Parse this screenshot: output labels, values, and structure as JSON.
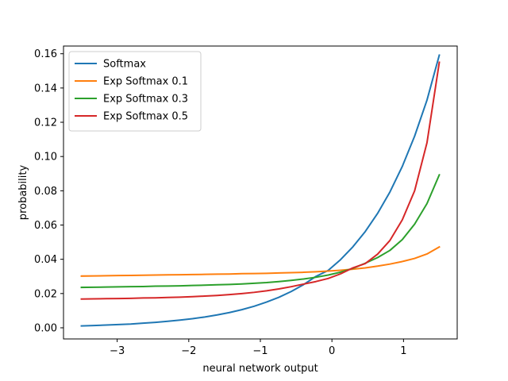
{
  "chart_data": {
    "type": "line",
    "xlabel": "neural network output",
    "ylabel": "probability",
    "xlim": [
      -3.75,
      1.75
    ],
    "ylim": [
      -0.0065,
      0.1645
    ],
    "xticks": [
      -3,
      -2,
      -1,
      0,
      1
    ],
    "xtick_labels": [
      "−3",
      "−2",
      "−1",
      "0",
      "1"
    ],
    "yticks": [
      0.0,
      0.02,
      0.04,
      0.06,
      0.08,
      0.1,
      0.12,
      0.14,
      0.16
    ],
    "ytick_labels": [
      "0.00",
      "0.02",
      "0.04",
      "0.06",
      "0.08",
      "0.10",
      "0.12",
      "0.14",
      "0.16"
    ],
    "grid": false,
    "legend_position": "top-left",
    "x": [
      -3.5,
      -3.3276,
      -3.1552,
      -2.9828,
      -2.8103,
      -2.6379,
      -2.4655,
      -2.2931,
      -2.1207,
      -1.9483,
      -1.7759,
      -1.6034,
      -1.431,
      -1.2586,
      -1.0862,
      -0.9138,
      -0.7414,
      -0.569,
      -0.3966,
      -0.2241,
      -0.0517,
      0.1207,
      0.2931,
      0.4655,
      0.6379,
      0.8103,
      0.9828,
      1.1552,
      1.3276,
      1.5
    ],
    "series": [
      {
        "name": "Softmax",
        "color": "#1f77b4",
        "values": [
          0.0011,
          0.0013,
          0.0016,
          0.0019,
          0.0022,
          0.0027,
          0.0032,
          0.0038,
          0.0045,
          0.0053,
          0.0063,
          0.0075,
          0.0089,
          0.0106,
          0.0126,
          0.015,
          0.0178,
          0.0212,
          0.0252,
          0.03,
          0.0335,
          0.0398,
          0.0473,
          0.0562,
          0.0668,
          0.0793,
          0.0942,
          0.1119,
          0.1329,
          0.1592
        ]
      },
      {
        "name": "Exp Softmax 0.1",
        "color": "#ff7f0e",
        "values": [
          0.0302,
          0.0303,
          0.0304,
          0.0305,
          0.0306,
          0.0307,
          0.0308,
          0.0309,
          0.031,
          0.0311,
          0.0312,
          0.0313,
          0.0314,
          0.0316,
          0.0317,
          0.0318,
          0.032,
          0.0322,
          0.0324,
          0.0327,
          0.0331,
          0.0336,
          0.0342,
          0.035,
          0.036,
          0.0372,
          0.0387,
          0.0405,
          0.0431,
          0.0472
        ]
      },
      {
        "name": "Exp Softmax 0.3",
        "color": "#2ca02c",
        "values": [
          0.0236,
          0.0237,
          0.0238,
          0.0239,
          0.024,
          0.0241,
          0.0243,
          0.0244,
          0.0245,
          0.0247,
          0.0249,
          0.0251,
          0.0253,
          0.0256,
          0.026,
          0.0264,
          0.027,
          0.0277,
          0.0285,
          0.0295,
          0.0308,
          0.0325,
          0.0347,
          0.0377,
          0.041,
          0.0452,
          0.0515,
          0.0605,
          0.0725,
          0.0893
        ]
      },
      {
        "name": "Exp Softmax 0.5",
        "color": "#d62728",
        "values": [
          0.0168,
          0.0169,
          0.017,
          0.0171,
          0.0172,
          0.0174,
          0.0175,
          0.0177,
          0.0179,
          0.0182,
          0.0185,
          0.0189,
          0.0194,
          0.02,
          0.0207,
          0.0216,
          0.0227,
          0.024,
          0.0255,
          0.027,
          0.0288,
          0.0315,
          0.035,
          0.0375,
          0.043,
          0.051,
          0.063,
          0.08,
          0.108,
          0.155
        ]
      }
    ]
  }
}
